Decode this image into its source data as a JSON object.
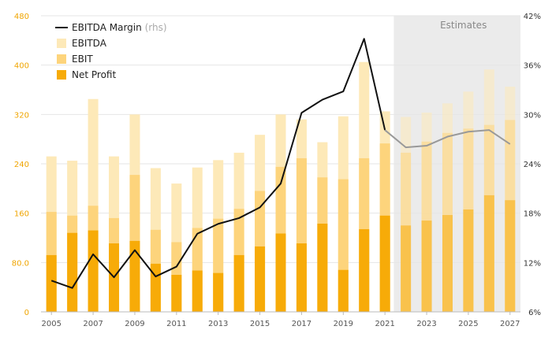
{
  "chart_data": {
    "type": "bar",
    "x": [
      "2005",
      "2006",
      "2007",
      "2008",
      "2009",
      "2010",
      "2011",
      "2012",
      "2013",
      "2014",
      "2015",
      "2016",
      "2017",
      "2018",
      "2019",
      "2020",
      "2021",
      "2022",
      "2023",
      "2024",
      "2025",
      "2026",
      "2027"
    ],
    "x_tick_labels": [
      "2005",
      "2007",
      "2009",
      "2011",
      "2013",
      "2015",
      "2017",
      "2019",
      "2021",
      "2023",
      "2025",
      "2027"
    ],
    "estimate_start": "2022",
    "estimates_label": "Estimates",
    "y_left": {
      "ylim": [
        0,
        480
      ],
      "ticks": [
        "0",
        "80.0",
        "160",
        "240",
        "320",
        "400",
        "480"
      ],
      "tick_values": [
        0,
        80,
        160,
        240,
        320,
        400,
        480
      ]
    },
    "y_right": {
      "ylim": [
        6,
        42
      ],
      "ticks": [
        "6%",
        "12%",
        "18%",
        "24%",
        "30%",
        "36%",
        "42%"
      ],
      "tick_values": [
        6,
        12,
        18,
        24,
        30,
        36,
        42
      ]
    },
    "series": [
      {
        "name": "EBITDA",
        "type": "bar",
        "color": "#fde9b8",
        "values": [
          252,
          245,
          345,
          252,
          320,
          233,
          208,
          234,
          246,
          258,
          287,
          320,
          312,
          275,
          317,
          405,
          325,
          316,
          323,
          338,
          357,
          393,
          365
        ]
      },
      {
        "name": "EBIT",
        "type": "bar",
        "color": "#fdd47c",
        "values": [
          162,
          156,
          172,
          152,
          222,
          133,
          113,
          136,
          151,
          167,
          196,
          235,
          249,
          218,
          215,
          249,
          273,
          258,
          276,
          290,
          297,
          303,
          311
        ]
      },
      {
        "name": "Net Profit",
        "type": "bar",
        "color": "#f7ab08",
        "values": [
          92,
          128,
          132,
          111,
          115,
          78,
          60,
          67,
          63,
          92,
          106,
          127,
          111,
          143,
          68,
          134,
          156,
          140,
          148,
          157,
          166,
          189,
          181
        ]
      },
      {
        "name": "EBITDA Margin",
        "name_suffix": "(rhs)",
        "type": "line",
        "axis": "right",
        "color": "#111111",
        "estimate_color": "#999999",
        "values": [
          9.8,
          8.9,
          13.0,
          10.2,
          13.5,
          10.3,
          11.5,
          15.5,
          16.7,
          17.4,
          18.7,
          21.6,
          30.2,
          31.8,
          32.8,
          39.2,
          28.1,
          26.0,
          26.2,
          27.3,
          27.9,
          28.1,
          26.4
        ]
      }
    ],
    "legend": [
      "EBITDA Margin (rhs)",
      "EBITDA",
      "EBIT",
      "Net Profit"
    ],
    "legend_position": "top-left",
    "grid": true,
    "colors": {
      "left_axis": "#f0a500",
      "right_axis": "#333333",
      "estimates_bg": "#ebebeb",
      "estimates_text": "#888888"
    }
  }
}
